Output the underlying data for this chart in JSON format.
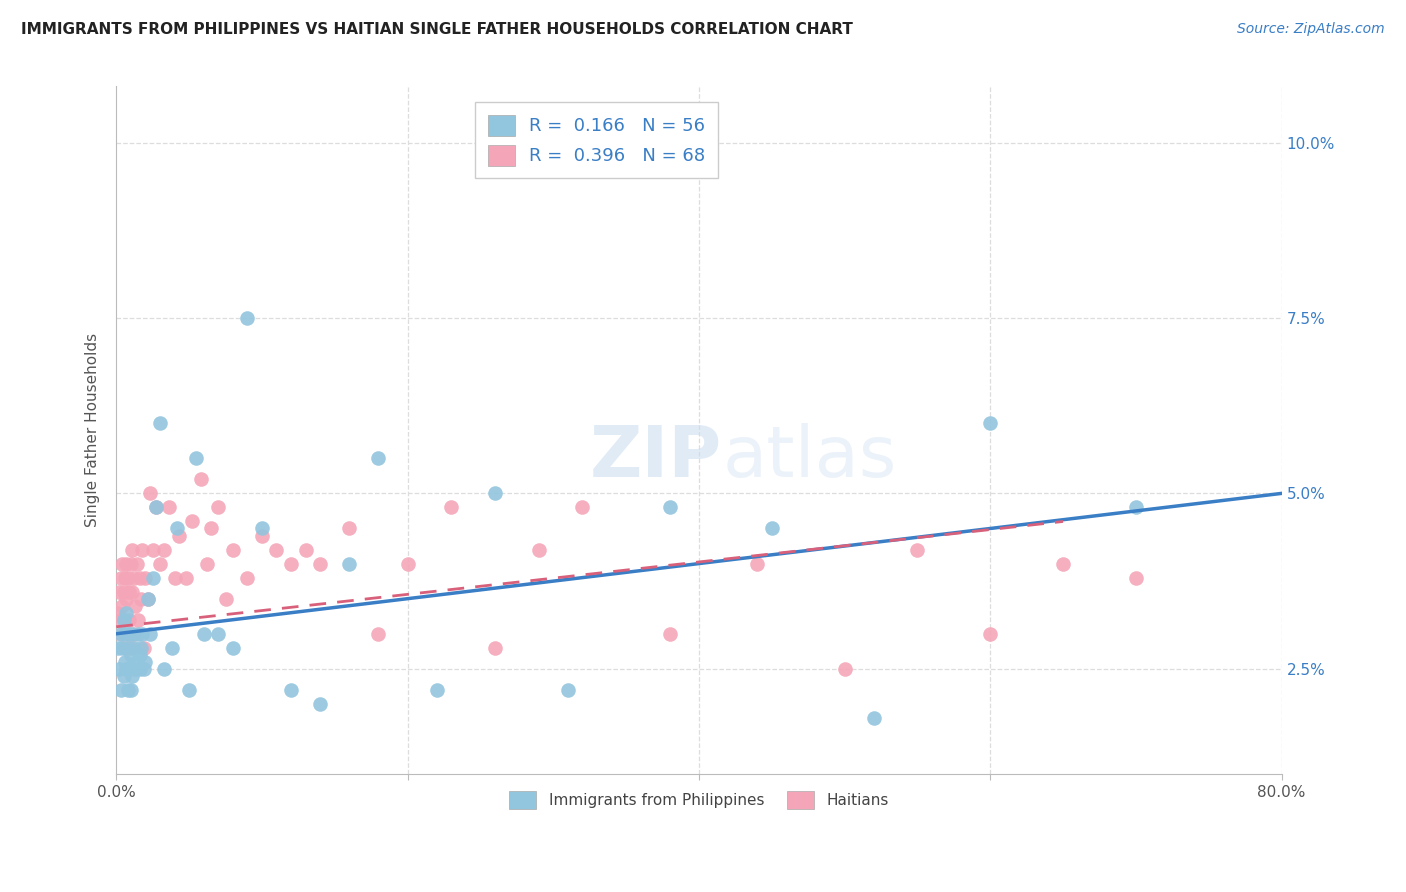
{
  "title": "IMMIGRANTS FROM PHILIPPINES VS HAITIAN SINGLE FATHER HOUSEHOLDS CORRELATION CHART",
  "source": "Source: ZipAtlas.com",
  "ylabel": "Single Father Households",
  "xlim": [
    0.0,
    0.8
  ],
  "ylim": [
    0.01,
    0.108
  ],
  "xticks": [
    0.0,
    0.2,
    0.4,
    0.6,
    0.8
  ],
  "xtick_labels": [
    "0.0%",
    "",
    "",
    "",
    "80.0%"
  ],
  "ytick_labels_right": [
    "2.5%",
    "5.0%",
    "7.5%",
    "10.0%"
  ],
  "ytick_vals_right": [
    0.025,
    0.05,
    0.075,
    0.1
  ],
  "blue_R": 0.166,
  "blue_N": 56,
  "pink_R": 0.396,
  "pink_N": 68,
  "blue_color": "#92C5DE",
  "pink_color": "#F4A6B8",
  "blue_line_color": "#3A7EC6",
  "pink_line_color": "#D9607A",
  "background_color": "#FFFFFF",
  "blue_points_x": [
    0.001,
    0.002,
    0.003,
    0.003,
    0.004,
    0.005,
    0.005,
    0.006,
    0.006,
    0.007,
    0.007,
    0.008,
    0.008,
    0.009,
    0.009,
    0.01,
    0.01,
    0.011,
    0.011,
    0.012,
    0.013,
    0.014,
    0.015,
    0.016,
    0.016,
    0.017,
    0.018,
    0.019,
    0.02,
    0.022,
    0.023,
    0.025,
    0.027,
    0.03,
    0.033,
    0.038,
    0.042,
    0.05,
    0.055,
    0.06,
    0.07,
    0.08,
    0.09,
    0.1,
    0.12,
    0.14,
    0.16,
    0.18,
    0.22,
    0.26,
    0.31,
    0.38,
    0.45,
    0.52,
    0.6,
    0.7
  ],
  "blue_points_y": [
    0.028,
    0.025,
    0.03,
    0.022,
    0.028,
    0.024,
    0.032,
    0.026,
    0.03,
    0.025,
    0.033,
    0.022,
    0.028,
    0.025,
    0.03,
    0.022,
    0.027,
    0.024,
    0.03,
    0.028,
    0.025,
    0.026,
    0.03,
    0.027,
    0.025,
    0.028,
    0.03,
    0.025,
    0.026,
    0.035,
    0.03,
    0.038,
    0.048,
    0.06,
    0.025,
    0.028,
    0.045,
    0.022,
    0.055,
    0.03,
    0.03,
    0.028,
    0.075,
    0.045,
    0.022,
    0.02,
    0.04,
    0.055,
    0.022,
    0.05,
    0.022,
    0.048,
    0.045,
    0.018,
    0.06,
    0.048
  ],
  "pink_points_x": [
    0.001,
    0.002,
    0.002,
    0.003,
    0.003,
    0.004,
    0.004,
    0.005,
    0.005,
    0.006,
    0.006,
    0.007,
    0.007,
    0.008,
    0.008,
    0.009,
    0.009,
    0.01,
    0.01,
    0.011,
    0.011,
    0.012,
    0.012,
    0.013,
    0.014,
    0.015,
    0.016,
    0.017,
    0.018,
    0.019,
    0.02,
    0.022,
    0.023,
    0.025,
    0.027,
    0.03,
    0.033,
    0.036,
    0.04,
    0.043,
    0.048,
    0.052,
    0.058,
    0.062,
    0.065,
    0.07,
    0.075,
    0.08,
    0.09,
    0.1,
    0.11,
    0.12,
    0.13,
    0.14,
    0.16,
    0.18,
    0.2,
    0.23,
    0.26,
    0.29,
    0.32,
    0.38,
    0.44,
    0.5,
    0.55,
    0.6,
    0.65,
    0.7
  ],
  "pink_points_y": [
    0.033,
    0.036,
    0.032,
    0.038,
    0.03,
    0.04,
    0.034,
    0.036,
    0.032,
    0.038,
    0.028,
    0.035,
    0.04,
    0.03,
    0.038,
    0.036,
    0.032,
    0.04,
    0.028,
    0.036,
    0.042,
    0.03,
    0.038,
    0.034,
    0.04,
    0.032,
    0.038,
    0.035,
    0.042,
    0.028,
    0.038,
    0.035,
    0.05,
    0.042,
    0.048,
    0.04,
    0.042,
    0.048,
    0.038,
    0.044,
    0.038,
    0.046,
    0.052,
    0.04,
    0.045,
    0.048,
    0.035,
    0.042,
    0.038,
    0.044,
    0.042,
    0.04,
    0.042,
    0.04,
    0.045,
    0.03,
    0.04,
    0.048,
    0.028,
    0.042,
    0.048,
    0.03,
    0.04,
    0.025,
    0.042,
    0.03,
    0.04,
    0.038
  ],
  "blue_line_x": [
    0.0,
    0.8
  ],
  "blue_line_y": [
    0.03,
    0.05
  ],
  "pink_line_x": [
    0.0,
    0.65
  ],
  "pink_line_y": [
    0.031,
    0.046
  ]
}
